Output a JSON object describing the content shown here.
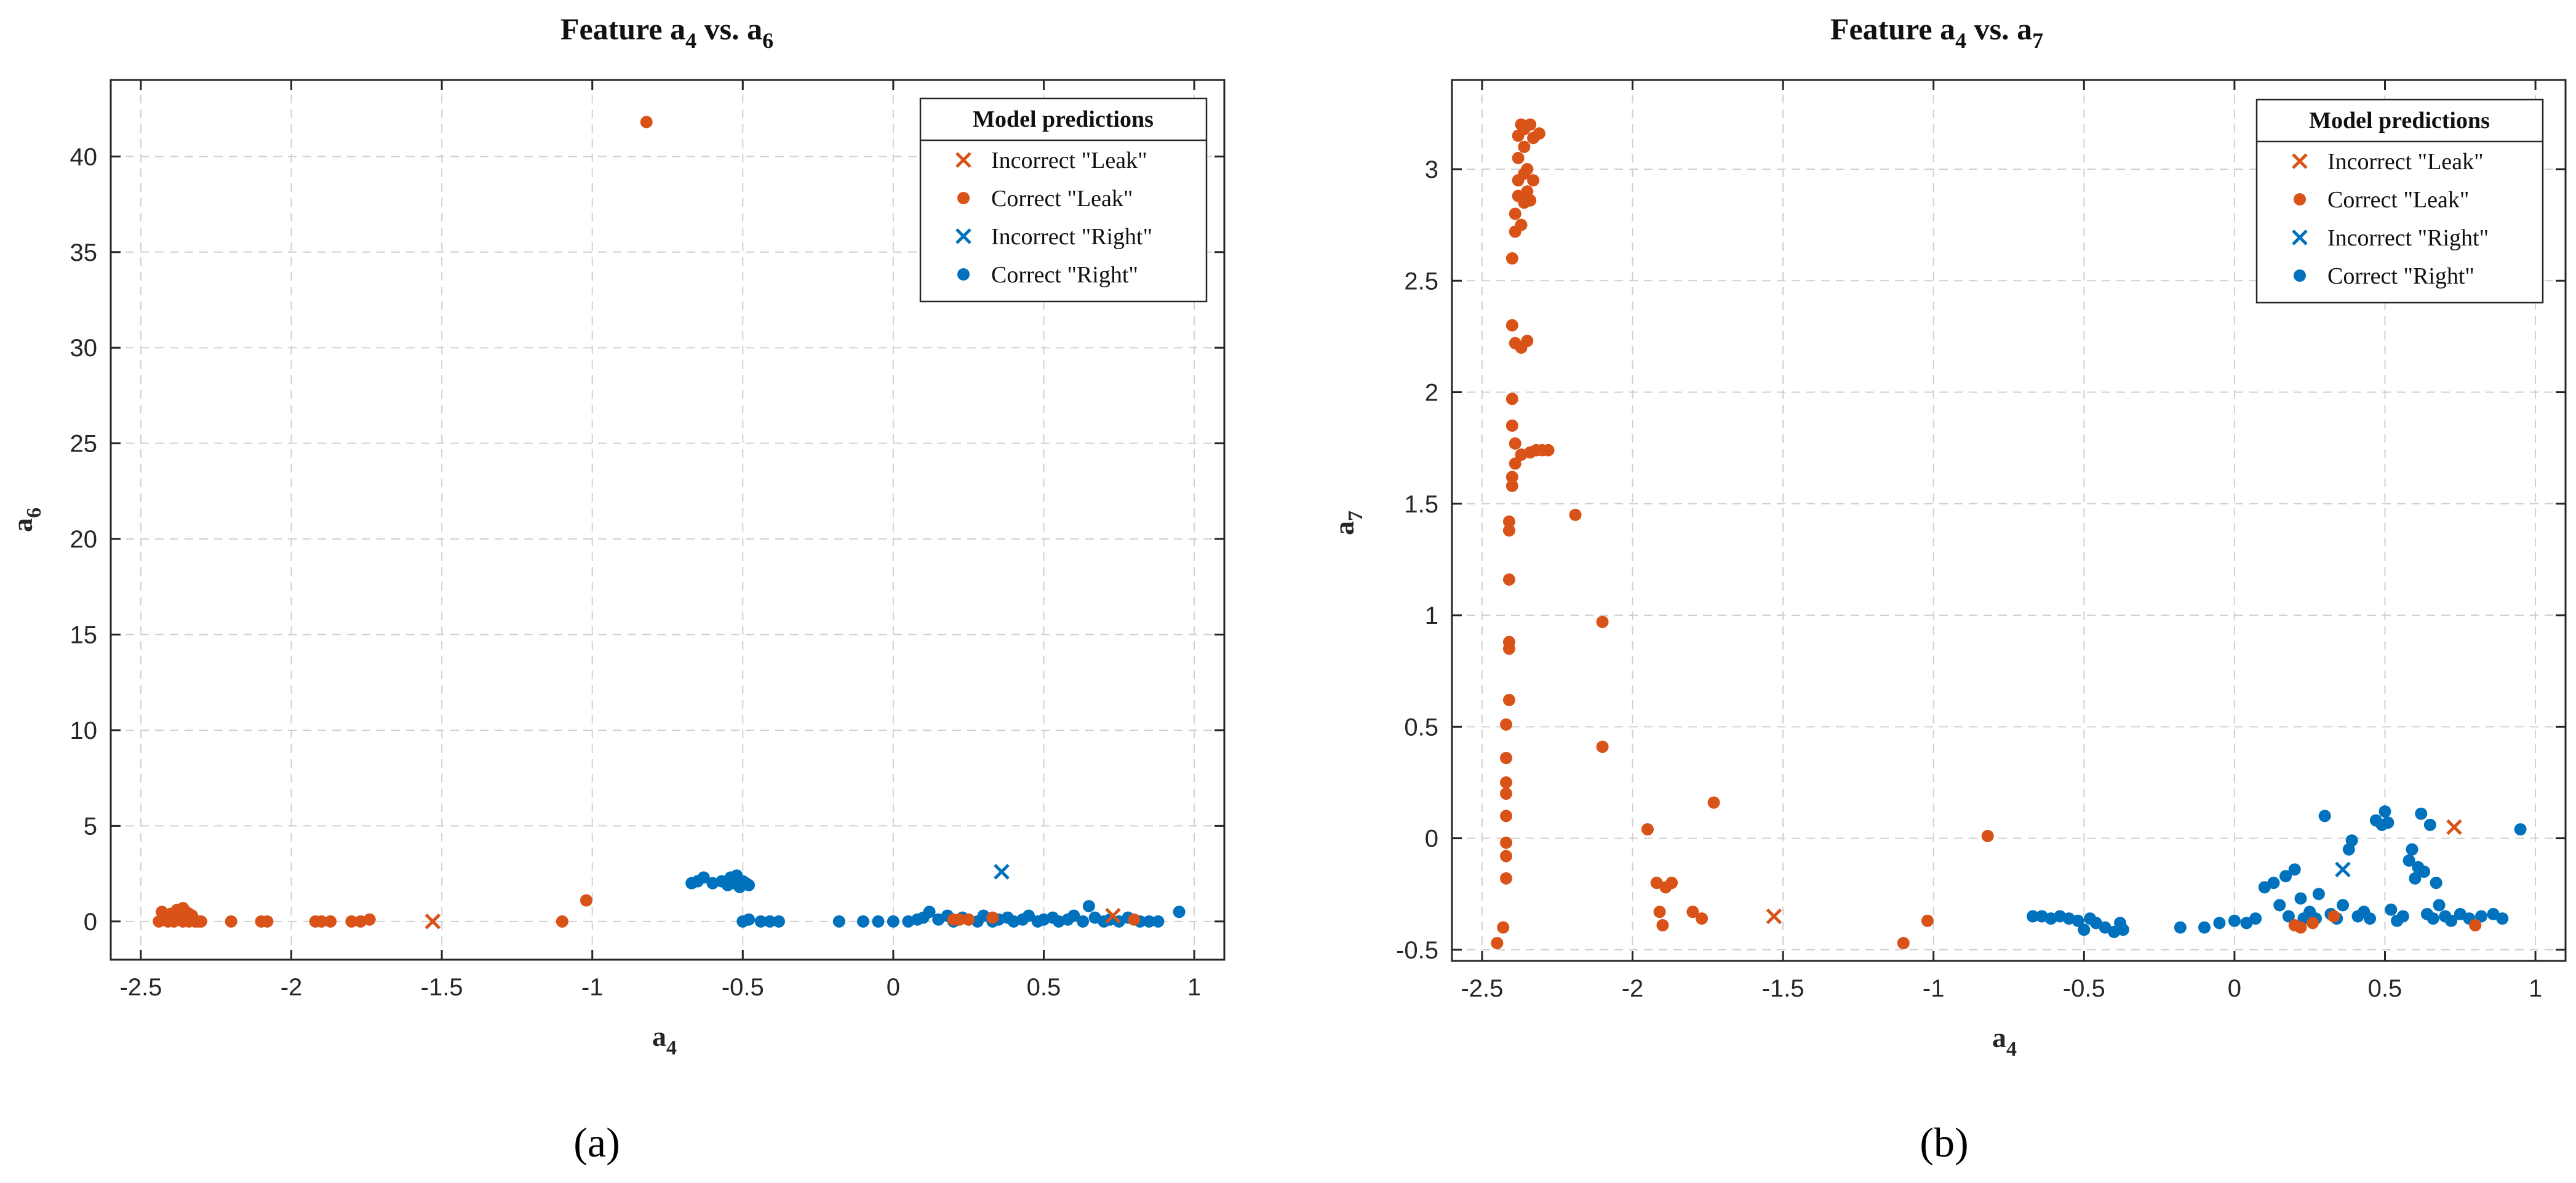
{
  "figure": {
    "panel_labels": [
      "(a)",
      "(b)"
    ]
  },
  "chart_data": [
    {
      "type": "scatter",
      "title": "Feature a4 vs. a6",
      "title_parts": {
        "prefix": "Feature a",
        "sub1": "4",
        "mid": " vs. a",
        "sub2": "6"
      },
      "xlabel": "a4",
      "xlabel_parts": {
        "base": "a",
        "sub": "4"
      },
      "ylabel": "a6",
      "ylabel_parts": {
        "base": "a",
        "sub": "6"
      },
      "xlim": [
        -2.6,
        1.1
      ],
      "ylim": [
        -2,
        44
      ],
      "xticks": [
        -2.5,
        -2,
        -1.5,
        -1,
        -0.5,
        0,
        0.5,
        1
      ],
      "xtick_labels": [
        "-2.5",
        "-2",
        "-1.5",
        "-1",
        "-0.5",
        "0",
        "0.5",
        "1"
      ],
      "yticks": [
        0,
        5,
        10,
        15,
        20,
        25,
        30,
        35,
        40
      ],
      "ytick_labels": [
        "0",
        "5",
        "10",
        "15",
        "20",
        "25",
        "30",
        "35",
        "40"
      ],
      "grid": true,
      "legend": {
        "title": "Model predictions",
        "position": "top-right",
        "entries": [
          "Incorrect \"Leak\"",
          "Correct \"Leak\"",
          "Incorrect \"Right\"",
          "Correct \"Right\""
        ]
      },
      "series": [
        {
          "name": "Incorrect \"Leak\"",
          "marker": "x",
          "color": "#D95319",
          "points": [
            [
              -1.53,
              0.0
            ],
            [
              0.73,
              0.3
            ]
          ]
        },
        {
          "name": "Correct \"Leak\"",
          "marker": "o",
          "color": "#D95319",
          "points": [
            [
              -2.44,
              0.0
            ],
            [
              -2.43,
              0.5
            ],
            [
              -2.42,
              0.2
            ],
            [
              -2.41,
              0.0
            ],
            [
              -2.4,
              0.4
            ],
            [
              -2.39,
              0.0
            ],
            [
              -2.38,
              0.6
            ],
            [
              -2.37,
              0.1
            ],
            [
              -2.36,
              0.0
            ],
            [
              -2.35,
              0.5
            ],
            [
              -2.34,
              0.0
            ],
            [
              -2.33,
              0.3
            ],
            [
              -2.32,
              0.0
            ],
            [
              -2.31,
              0.0
            ],
            [
              -2.3,
              0.0
            ],
            [
              -2.36,
              0.7
            ],
            [
              -2.38,
              0.2
            ],
            [
              -2.34,
              0.4
            ],
            [
              -2.2,
              0.0
            ],
            [
              -2.1,
              0.0
            ],
            [
              -2.08,
              0.0
            ],
            [
              -1.92,
              0.0
            ],
            [
              -1.9,
              0.0
            ],
            [
              -1.87,
              0.0
            ],
            [
              -1.8,
              0.0
            ],
            [
              -1.77,
              0.0
            ],
            [
              -1.74,
              0.1
            ],
            [
              -1.1,
              0.0
            ],
            [
              -1.02,
              1.1
            ],
            [
              -0.82,
              41.8
            ],
            [
              0.2,
              0.1
            ],
            [
              0.22,
              0.1
            ],
            [
              0.25,
              0.1
            ],
            [
              0.33,
              0.2
            ],
            [
              0.8,
              0.1
            ]
          ]
        },
        {
          "name": "Incorrect \"Right\"",
          "marker": "x",
          "color": "#0072BD",
          "points": [
            [
              0.36,
              2.6
            ]
          ]
        },
        {
          "name": "Correct \"Right\"",
          "marker": "o",
          "color": "#0072BD",
          "points": [
            [
              -0.67,
              2.0
            ],
            [
              -0.65,
              2.1
            ],
            [
              -0.63,
              2.3
            ],
            [
              -0.6,
              2.0
            ],
            [
              -0.57,
              2.1
            ],
            [
              -0.55,
              1.9
            ],
            [
              -0.54,
              2.3
            ],
            [
              -0.53,
              2.0
            ],
            [
              -0.52,
              2.4
            ],
            [
              -0.51,
              1.8
            ],
            [
              -0.5,
              2.1
            ],
            [
              -0.49,
              2.0
            ],
            [
              -0.48,
              1.9
            ],
            [
              -0.5,
              0.0
            ],
            [
              -0.48,
              0.1
            ],
            [
              -0.44,
              0.0
            ],
            [
              -0.41,
              0.0
            ],
            [
              -0.38,
              0.0
            ],
            [
              -0.18,
              0.0
            ],
            [
              -0.1,
              0.0
            ],
            [
              -0.05,
              0.0
            ],
            [
              0.0,
              0.0
            ],
            [
              0.05,
              0.0
            ],
            [
              0.08,
              0.1
            ],
            [
              0.1,
              0.2
            ],
            [
              0.12,
              0.5
            ],
            [
              0.15,
              0.1
            ],
            [
              0.18,
              0.3
            ],
            [
              0.2,
              0.0
            ],
            [
              0.23,
              0.2
            ],
            [
              0.25,
              0.1
            ],
            [
              0.28,
              0.0
            ],
            [
              0.3,
              0.3
            ],
            [
              0.33,
              0.0
            ],
            [
              0.35,
              0.1
            ],
            [
              0.38,
              0.2
            ],
            [
              0.4,
              0.0
            ],
            [
              0.43,
              0.1
            ],
            [
              0.45,
              0.3
            ],
            [
              0.48,
              0.0
            ],
            [
              0.5,
              0.1
            ],
            [
              0.53,
              0.2
            ],
            [
              0.55,
              0.0
            ],
            [
              0.58,
              0.1
            ],
            [
              0.6,
              0.3
            ],
            [
              0.63,
              0.0
            ],
            [
              0.65,
              0.8
            ],
            [
              0.67,
              0.2
            ],
            [
              0.7,
              0.0
            ],
            [
              0.72,
              0.1
            ],
            [
              0.75,
              0.0
            ],
            [
              0.78,
              0.2
            ],
            [
              0.82,
              0.0
            ],
            [
              0.85,
              0.0
            ],
            [
              0.88,
              0.0
            ],
            [
              0.95,
              0.5
            ]
          ]
        }
      ]
    },
    {
      "type": "scatter",
      "title": "Feature a4 vs. a7",
      "title_parts": {
        "prefix": "Feature a",
        "sub1": "4",
        "mid": " vs. a",
        "sub2": "7"
      },
      "xlabel": "a4",
      "xlabel_parts": {
        "base": "a",
        "sub": "4"
      },
      "ylabel": "a7",
      "ylabel_parts": {
        "base": "a",
        "sub": "7"
      },
      "xlim": [
        -2.6,
        1.1
      ],
      "ylim": [
        -0.55,
        3.4
      ],
      "xticks": [
        -2.5,
        -2,
        -1.5,
        -1,
        -0.5,
        0,
        0.5,
        1
      ],
      "xtick_labels": [
        "-2.5",
        "-2",
        "-1.5",
        "-1",
        "-0.5",
        "0",
        "0.5",
        "1"
      ],
      "yticks": [
        -0.5,
        0,
        0.5,
        1,
        1.5,
        2,
        2.5,
        3
      ],
      "ytick_labels": [
        "-0.5",
        "0",
        "0.5",
        "1",
        "1.5",
        "2",
        "2.5",
        "3"
      ],
      "grid": true,
      "legend": {
        "title": "Model predictions",
        "position": "top-right",
        "entries": [
          "Incorrect \"Leak\"",
          "Correct \"Leak\"",
          "Incorrect \"Right\"",
          "Correct \"Right\""
        ]
      },
      "series": [
        {
          "name": "Incorrect \"Leak\"",
          "marker": "x",
          "color": "#D95319",
          "points": [
            [
              -1.53,
              -0.35
            ],
            [
              0.73,
              0.05
            ]
          ]
        },
        {
          "name": "Correct \"Leak\"",
          "marker": "o",
          "color": "#D95319",
          "points": [
            [
              -2.45,
              -0.47
            ],
            [
              -2.43,
              -0.4
            ],
            [
              -2.42,
              -0.18
            ],
            [
              -2.42,
              -0.08
            ],
            [
              -2.42,
              -0.02
            ],
            [
              -2.42,
              0.1
            ],
            [
              -2.42,
              0.2
            ],
            [
              -2.42,
              0.25
            ],
            [
              -2.42,
              0.36
            ],
            [
              -2.42,
              0.51
            ],
            [
              -2.41,
              0.62
            ],
            [
              -2.41,
              0.85
            ],
            [
              -2.41,
              0.88
            ],
            [
              -2.41,
              1.16
            ],
            [
              -2.41,
              1.38
            ],
            [
              -2.41,
              1.42
            ],
            [
              -2.4,
              1.58
            ],
            [
              -2.4,
              1.62
            ],
            [
              -2.4,
              1.85
            ],
            [
              -2.4,
              1.97
            ],
            [
              -2.4,
              2.3
            ],
            [
              -2.4,
              2.6
            ],
            [
              -2.39,
              1.68
            ],
            [
              -2.39,
              1.77
            ],
            [
              -2.39,
              2.22
            ],
            [
              -2.39,
              2.72
            ],
            [
              -2.39,
              2.8
            ],
            [
              -2.38,
              2.88
            ],
            [
              -2.38,
              2.95
            ],
            [
              -2.38,
              3.05
            ],
            [
              -2.38,
              3.15
            ],
            [
              -2.37,
              3.2
            ],
            [
              -2.37,
              2.75
            ],
            [
              -2.37,
              1.72
            ],
            [
              -2.37,
              2.2
            ],
            [
              -2.36,
              2.85
            ],
            [
              -2.36,
              2.98
            ],
            [
              -2.36,
              3.1
            ],
            [
              -2.36,
              3.18
            ],
            [
              -2.35,
              2.9
            ],
            [
              -2.35,
              3.0
            ],
            [
              -2.35,
              2.23
            ],
            [
              -2.34,
              3.2
            ],
            [
              -2.34,
              2.86
            ],
            [
              -2.34,
              1.73
            ],
            [
              -2.33,
              2.95
            ],
            [
              -2.33,
              3.14
            ],
            [
              -2.32,
              1.74
            ],
            [
              -2.31,
              3.16
            ],
            [
              -2.3,
              1.74
            ],
            [
              -2.28,
              1.74
            ],
            [
              -2.19,
              1.45
            ],
            [
              -2.1,
              0.97
            ],
            [
              -2.1,
              0.41
            ],
            [
              -1.95,
              0.04
            ],
            [
              -1.92,
              -0.2
            ],
            [
              -1.91,
              -0.33
            ],
            [
              -1.9,
              -0.39
            ],
            [
              -1.89,
              -0.22
            ],
            [
              -1.87,
              -0.2
            ],
            [
              -1.8,
              -0.33
            ],
            [
              -1.77,
              -0.36
            ],
            [
              -1.73,
              0.16
            ],
            [
              -1.1,
              -0.47
            ],
            [
              -1.02,
              -0.37
            ],
            [
              -0.82,
              0.01
            ],
            [
              0.2,
              -0.39
            ],
            [
              0.22,
              -0.4
            ],
            [
              0.26,
              -0.38
            ],
            [
              0.33,
              -0.35
            ],
            [
              0.8,
              -0.39
            ]
          ]
        },
        {
          "name": "Incorrect \"Right\"",
          "marker": "x",
          "color": "#0072BD",
          "points": [
            [
              0.36,
              -0.14
            ]
          ]
        },
        {
          "name": "Correct \"Right\"",
          "marker": "o",
          "color": "#0072BD",
          "points": [
            [
              -0.67,
              -0.35
            ],
            [
              -0.64,
              -0.35
            ],
            [
              -0.61,
              -0.36
            ],
            [
              -0.58,
              -0.35
            ],
            [
              -0.55,
              -0.36
            ],
            [
              -0.52,
              -0.37
            ],
            [
              -0.5,
              -0.41
            ],
            [
              -0.48,
              -0.36
            ],
            [
              -0.46,
              -0.38
            ],
            [
              -0.43,
              -0.4
            ],
            [
              -0.4,
              -0.42
            ],
            [
              -0.38,
              -0.38
            ],
            [
              -0.37,
              -0.41
            ],
            [
              -0.18,
              -0.4
            ],
            [
              -0.1,
              -0.4
            ],
            [
              -0.05,
              -0.38
            ],
            [
              0.0,
              -0.37
            ],
            [
              0.04,
              -0.38
            ],
            [
              0.07,
              -0.36
            ],
            [
              0.1,
              -0.22
            ],
            [
              0.13,
              -0.2
            ],
            [
              0.15,
              -0.3
            ],
            [
              0.17,
              -0.17
            ],
            [
              0.18,
              -0.35
            ],
            [
              0.2,
              -0.14
            ],
            [
              0.22,
              -0.27
            ],
            [
              0.23,
              -0.36
            ],
            [
              0.25,
              -0.33
            ],
            [
              0.27,
              -0.36
            ],
            [
              0.28,
              -0.25
            ],
            [
              0.3,
              0.1
            ],
            [
              0.32,
              -0.34
            ],
            [
              0.34,
              -0.36
            ],
            [
              0.36,
              -0.3
            ],
            [
              0.38,
              -0.05
            ],
            [
              0.39,
              -0.01
            ],
            [
              0.41,
              -0.35
            ],
            [
              0.43,
              -0.33
            ],
            [
              0.45,
              -0.36
            ],
            [
              0.47,
              0.08
            ],
            [
              0.49,
              0.06
            ],
            [
              0.5,
              0.12
            ],
            [
              0.51,
              0.07
            ],
            [
              0.52,
              -0.32
            ],
            [
              0.54,
              -0.37
            ],
            [
              0.56,
              -0.35
            ],
            [
              0.58,
              -0.1
            ],
            [
              0.59,
              -0.05
            ],
            [
              0.6,
              -0.18
            ],
            [
              0.61,
              -0.13
            ],
            [
              0.62,
              0.11
            ],
            [
              0.63,
              -0.15
            ],
            [
              0.64,
              -0.34
            ],
            [
              0.65,
              0.06
            ],
            [
              0.66,
              -0.36
            ],
            [
              0.67,
              -0.2
            ],
            [
              0.68,
              -0.3
            ],
            [
              0.7,
              -0.35
            ],
            [
              0.72,
              -0.37
            ],
            [
              0.75,
              -0.34
            ],
            [
              0.78,
              -0.36
            ],
            [
              0.82,
              -0.35
            ],
            [
              0.86,
              -0.34
            ],
            [
              0.89,
              -0.36
            ],
            [
              0.95,
              0.04
            ]
          ]
        }
      ]
    }
  ]
}
